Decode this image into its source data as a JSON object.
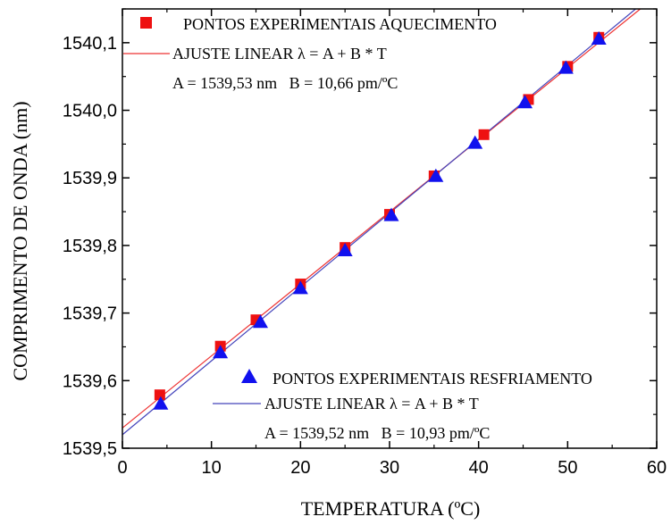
{
  "chart_data": {
    "type": "scatter",
    "xlabel": "TEMPERATURA (ºC)",
    "ylabel": "COMPRIMENTO DE ONDA (nm)",
    "xlim": [
      0,
      60
    ],
    "ylim": [
      1539.5,
      1540.15
    ],
    "xticks": [
      0,
      10,
      20,
      30,
      40,
      50,
      60
    ],
    "xtick_labels": [
      "0",
      "10",
      "20",
      "30",
      "40",
      "50",
      "60"
    ],
    "yticks": [
      1539.5,
      1539.6,
      1539.7,
      1539.8,
      1539.9,
      1540.0,
      1540.1
    ],
    "ytick_labels": [
      "1539,5",
      "1539,6",
      "1539,7",
      "1539,8",
      "1539,9",
      "1540,0",
      "1540,1"
    ],
    "grid": false,
    "series": [
      {
        "name": "PONTOS EXPERIMENTAIS AQUECIMENTO",
        "marker": "square",
        "color": "#ee1111",
        "x": [
          4.2,
          11.0,
          15.0,
          20.0,
          25.0,
          30.0,
          35.0,
          40.6,
          45.6,
          50.0,
          53.5
        ],
        "y": [
          1539.579,
          1539.651,
          1539.69,
          1539.743,
          1539.797,
          1539.846,
          1539.903,
          1539.964,
          1540.016,
          1540.065,
          1540.108
        ],
        "fit": {
          "label": "AJUSTE LINEAR λ = A + B * T",
          "params": "A = 1539,53 nm   B = 10,66 pm/ºC",
          "A": 1539.53,
          "B": 0.01066,
          "color": "#ee3333"
        }
      },
      {
        "name": "PONTOS EXPERIMENTAIS RESFRIAMENTO",
        "marker": "triangle",
        "color": "#1111ee",
        "x": [
          4.3,
          11.0,
          15.5,
          20.0,
          25.0,
          30.2,
          35.2,
          39.6,
          45.2,
          49.8,
          53.5
        ],
        "y": [
          1539.565,
          1539.641,
          1539.686,
          1539.736,
          1539.792,
          1539.844,
          1539.902,
          1539.951,
          1540.011,
          1540.062,
          1540.105
        ],
        "fit": {
          "label": "AJUSTE LINEAR λ = A + B * T",
          "params": "A = 1539,52 nm   B = 10,93 pm/ºC",
          "A": 1539.52,
          "B": 0.01093,
          "color": "#4444bb"
        }
      }
    ]
  }
}
